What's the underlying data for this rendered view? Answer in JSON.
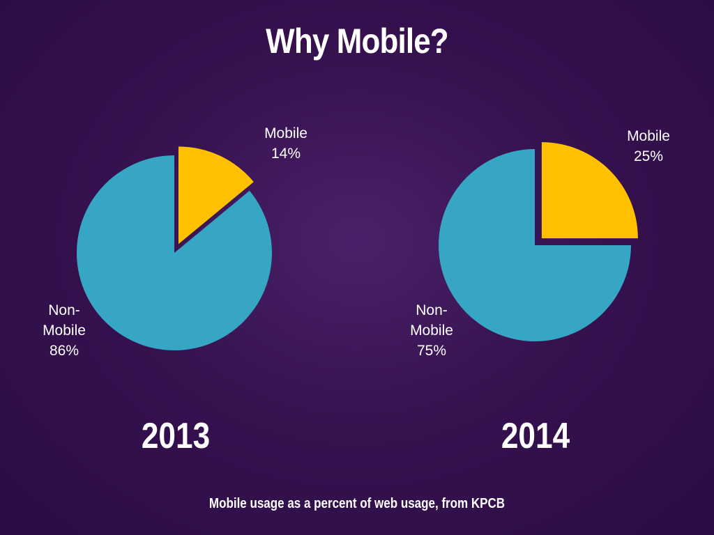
{
  "title": "Why Mobile?",
  "footnote": "Mobile usage as a percent of web usage, from KPCB",
  "colors": {
    "background": "#36124f",
    "mobile": "#ffc000",
    "non_mobile": "#37a6c4",
    "text": "#ffffff"
  },
  "chart_data": [
    {
      "type": "pie",
      "title": "2013",
      "categories": [
        "Mobile",
        "Non-Mobile"
      ],
      "values": [
        14,
        86
      ],
      "labels": [
        {
          "lines": [
            "Mobile",
            "14%"
          ]
        },
        {
          "lines": [
            "Non-",
            "Mobile",
            "86%"
          ]
        }
      ],
      "exploded": "Mobile"
    },
    {
      "type": "pie",
      "title": "2014",
      "categories": [
        "Mobile",
        "Non-Mobile"
      ],
      "values": [
        25,
        75
      ],
      "labels": [
        {
          "lines": [
            "Mobile",
            "25%"
          ]
        },
        {
          "lines": [
            "Non-",
            "Mobile",
            "75%"
          ]
        }
      ],
      "exploded": "Mobile"
    }
  ]
}
